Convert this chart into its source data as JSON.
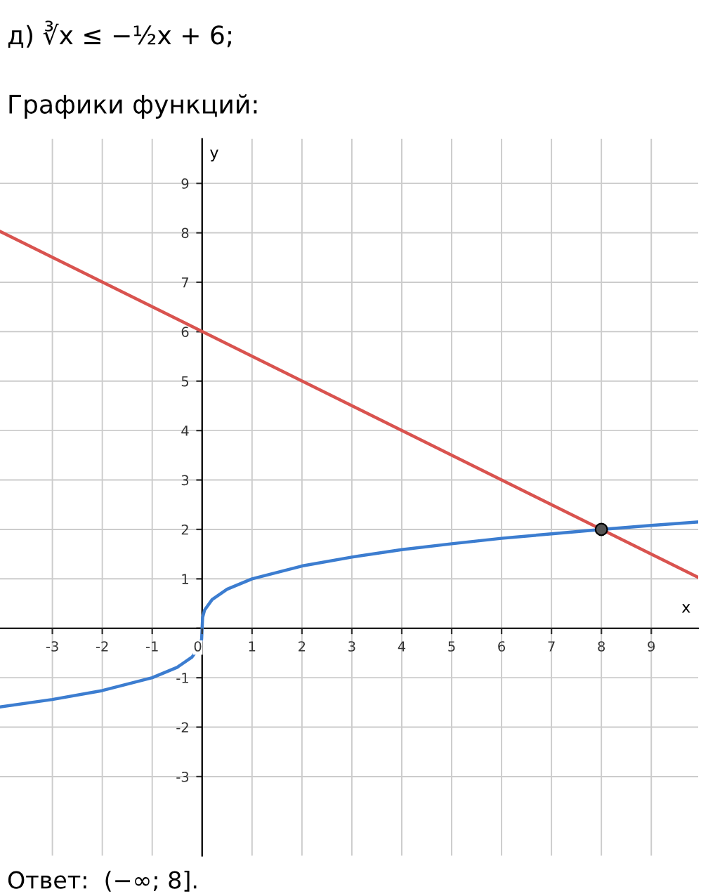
{
  "chart_data": {
    "type": "line",
    "title": "д) ∛x ≤ −½x + 6;",
    "subtitle": "Графики функций:",
    "xlabel": "x",
    "ylabel": "y",
    "annotations": [
      "Ответ:  (−∞; 8]."
    ],
    "series": [
      {
        "type": "line",
        "color": "#d9534f",
        "x": [
          -4.05,
          9.94
        ],
        "values": [
          8.03,
          1.03
        ]
      },
      {
        "type": "line",
        "color": "#3c7dd0",
        "x": [
          -4.05,
          -3,
          -2,
          -1,
          -0.5,
          -0.2,
          -0.05,
          -0.01,
          0,
          0.01,
          0.05,
          0.2,
          0.5,
          1,
          2,
          3,
          4,
          5,
          6,
          7,
          8,
          9,
          9.94
        ],
        "values": [
          -1.59,
          -1.44,
          -1.26,
          -1,
          -0.79,
          -0.58,
          -0.37,
          -0.22,
          0,
          0.22,
          0.37,
          0.58,
          0.79,
          1,
          1.26,
          1.44,
          1.59,
          1.71,
          1.82,
          1.91,
          2,
          2.08,
          2.15
        ]
      },
      {
        "type": "scatter",
        "color": "#555555",
        "x": [
          8
        ],
        "values": [
          2
        ],
        "marker": "circle"
      }
    ],
    "xlim": [
      -4.05,
      9.94
    ],
    "ylim": [
      -4.6,
      9.9
    ],
    "xticks": [
      -3,
      -2,
      -1,
      0,
      1,
      2,
      3,
      4,
      5,
      6,
      7,
      8,
      9
    ],
    "yticks": [
      -3,
      -2,
      -1,
      {
        "value": 0,
        "label": null
      },
      1,
      2,
      3,
      4,
      5,
      6,
      7,
      8,
      9
    ],
    "grid": true
  }
}
